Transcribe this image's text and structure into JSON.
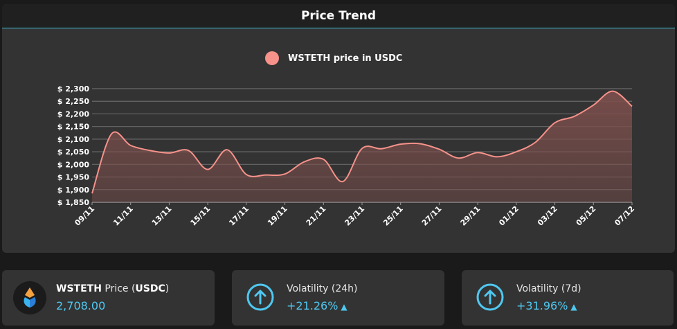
{
  "panel": {
    "title": "Price Trend"
  },
  "chart_data": {
    "type": "area",
    "legend": {
      "label": "WSTETH price in USDC",
      "position": "top-center"
    },
    "colors": {
      "line": "#f6928a",
      "fill": "#7a4e4b",
      "grid": "#6a6a6a",
      "text": "#ffffff"
    },
    "ylim": [
      1850,
      2300
    ],
    "yticks": [
      1850,
      1900,
      1950,
      2000,
      2050,
      2100,
      2150,
      2200,
      2250,
      2300
    ],
    "ytick_labels": [
      "$ 1,850",
      "$ 1,900",
      "$ 1,950",
      "$ 2,000",
      "$ 2,050",
      "$ 2,100",
      "$ 2,150",
      "$ 2,200",
      "$ 2,250",
      "$ 2,300"
    ],
    "xtick_labels": [
      "09/11",
      "11/11",
      "13/11",
      "15/11",
      "17/11",
      "19/11",
      "21/11",
      "23/11",
      "25/11",
      "27/11",
      "29/11",
      "01/12",
      "03/12",
      "05/12",
      "07/12"
    ],
    "grid": true,
    "x": [
      "09/11",
      "10/11",
      "11/11",
      "12/11",
      "13/11",
      "14/11",
      "15/11",
      "16/11",
      "17/11",
      "18/11",
      "19/11",
      "20/11",
      "21/11",
      "22/11",
      "23/11",
      "24/11",
      "25/11",
      "26/11",
      "27/11",
      "28/11",
      "29/11",
      "30/11",
      "01/12",
      "02/12",
      "03/12",
      "04/12",
      "05/12",
      "06/12",
      "07/12"
    ],
    "values": [
      1885,
      2120,
      2075,
      2055,
      2045,
      2055,
      1980,
      2058,
      1960,
      1958,
      1962,
      2010,
      2020,
      1932,
      2063,
      2062,
      2080,
      2082,
      2060,
      2025,
      2047,
      2030,
      2050,
      2088,
      2165,
      2190,
      2235,
      2290,
      2230
    ]
  },
  "cards": {
    "price": {
      "label_token": "WSTETH",
      "label_mid": " Price (",
      "label_unit": "USDC",
      "label_end": ")",
      "value": "2,708.00",
      "icon": "wsteth-logo"
    },
    "vol24": {
      "label": "Volatility (24h)",
      "value": "+21.26%",
      "icon": "arrow-up-circle-icon"
    },
    "vol7d": {
      "label": "Volatility (7d)",
      "value": "+31.96%",
      "icon": "arrow-up-circle-icon"
    }
  }
}
